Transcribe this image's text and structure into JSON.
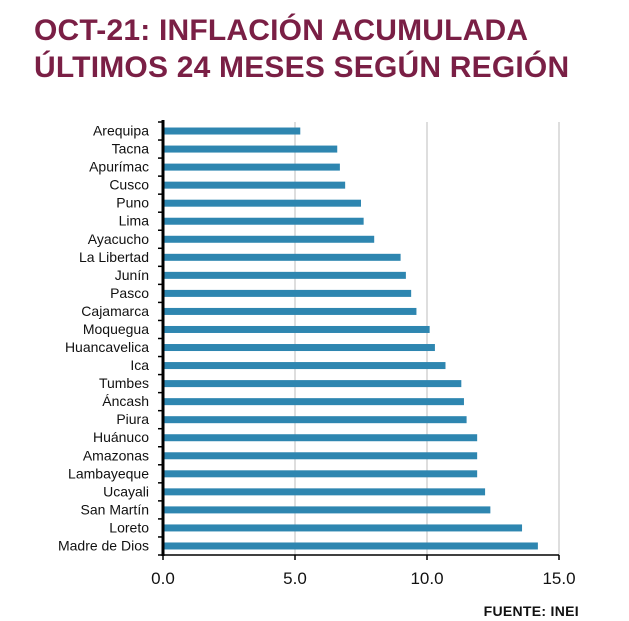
{
  "title_lines": [
    "OCT-21: INFLACIÓN ACUMULADA",
    "ÚLTIMOS 24 MESES SEGÚN REGIÓN"
  ],
  "source": "FUENTE: INEI",
  "colors": {
    "title": "#7a1f45",
    "bar": "#2e86b0",
    "grid": "#bdbdbd",
    "axis": "#000000"
  },
  "chart_data": {
    "type": "bar",
    "orientation": "horizontal",
    "categories": [
      "Arequipa",
      "Tacna",
      "Apurímac",
      "Cusco",
      "Puno",
      "Lima",
      "Ayacucho",
      "La Libertad",
      "Junín",
      "Pasco",
      "Cajamarca",
      "Moquegua",
      "Huancavelica",
      "Ica",
      "Tumbes",
      "Áncash",
      "Piura",
      "Huánuco",
      "Amazonas",
      "Lambayeque",
      "Ucayali",
      "San Martín",
      "Loreto",
      "Madre de Dios"
    ],
    "values": [
      5.2,
      6.6,
      6.7,
      6.9,
      7.5,
      7.6,
      8.0,
      9.0,
      9.2,
      9.4,
      9.6,
      10.1,
      10.3,
      10.7,
      11.3,
      11.4,
      11.5,
      11.9,
      11.9,
      11.9,
      12.2,
      12.4,
      13.6,
      14.2
    ],
    "xlim": [
      0,
      15
    ],
    "xticks": [
      "0.0",
      "5.0",
      "10.0",
      "15.0"
    ],
    "grid": true
  }
}
